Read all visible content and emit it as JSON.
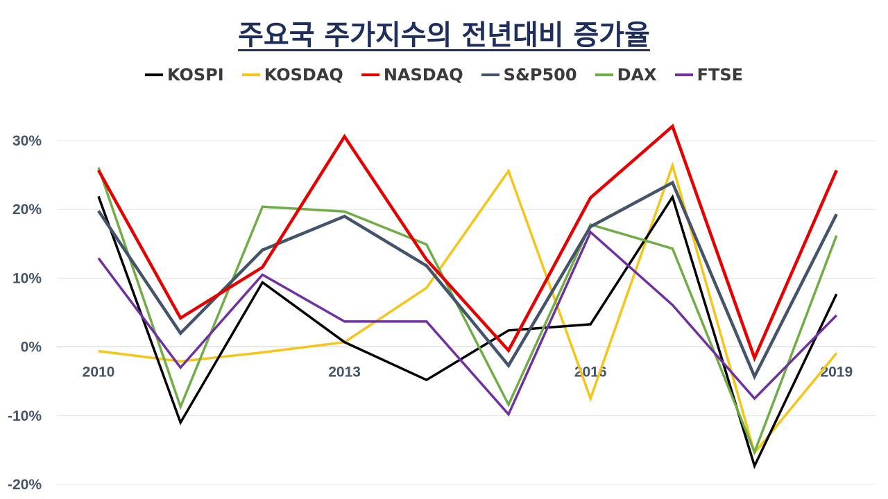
{
  "chart_data": {
    "type": "line",
    "title": "주요국 주가지수의 전년대비 증가율",
    "x": [
      2010,
      2011,
      2012,
      2013,
      2014,
      2015,
      2016,
      2017,
      2018,
      2019
    ],
    "x_tick_labels": [
      "2010",
      "2013",
      "2016",
      "2019"
    ],
    "x_tick_values": [
      2010,
      2013,
      2016,
      2019
    ],
    "ylim": [
      -20,
      30
    ],
    "y_ticks": [
      -20,
      -10,
      0,
      10,
      20,
      30
    ],
    "y_tick_labels": [
      "-20%",
      "-10%",
      "0%",
      "10%",
      "20%",
      "30%"
    ],
    "grid": true,
    "legend_position": "top",
    "series": [
      {
        "name": "KOSPI",
        "color": "#000000",
        "values": [
          21.9,
          -11.0,
          9.4,
          0.7,
          -4.8,
          2.4,
          3.3,
          21.8,
          -17.3,
          7.7
        ]
      },
      {
        "name": "KOSDAQ",
        "color": "#f5c518",
        "values": [
          -0.6,
          -2.1,
          -0.8,
          0.7,
          8.6,
          25.6,
          -7.5,
          26.4,
          -15.4,
          -0.9
        ]
      },
      {
        "name": "NASDAQ",
        "color": "#e60000",
        "values": [
          25.7,
          4.2,
          11.6,
          30.6,
          12.7,
          -0.5,
          21.7,
          32.1,
          -1.6,
          25.7
        ]
      },
      {
        "name": "S&P500",
        "color": "#44546a",
        "values": [
          19.8,
          2.0,
          14.1,
          19.0,
          11.8,
          -2.7,
          17.5,
          23.9,
          -4.3,
          19.3
        ]
      },
      {
        "name": "DAX",
        "color": "#70ad47",
        "values": [
          26.1,
          -8.7,
          20.4,
          19.7,
          14.9,
          -8.4,
          17.8,
          14.3,
          -15.3,
          16.2
        ]
      },
      {
        "name": "FTSE",
        "color": "#7030a0",
        "values": [
          12.9,
          -3.0,
          10.5,
          3.7,
          3.7,
          -9.8,
          16.7,
          6.1,
          -7.5,
          4.6
        ]
      }
    ]
  }
}
